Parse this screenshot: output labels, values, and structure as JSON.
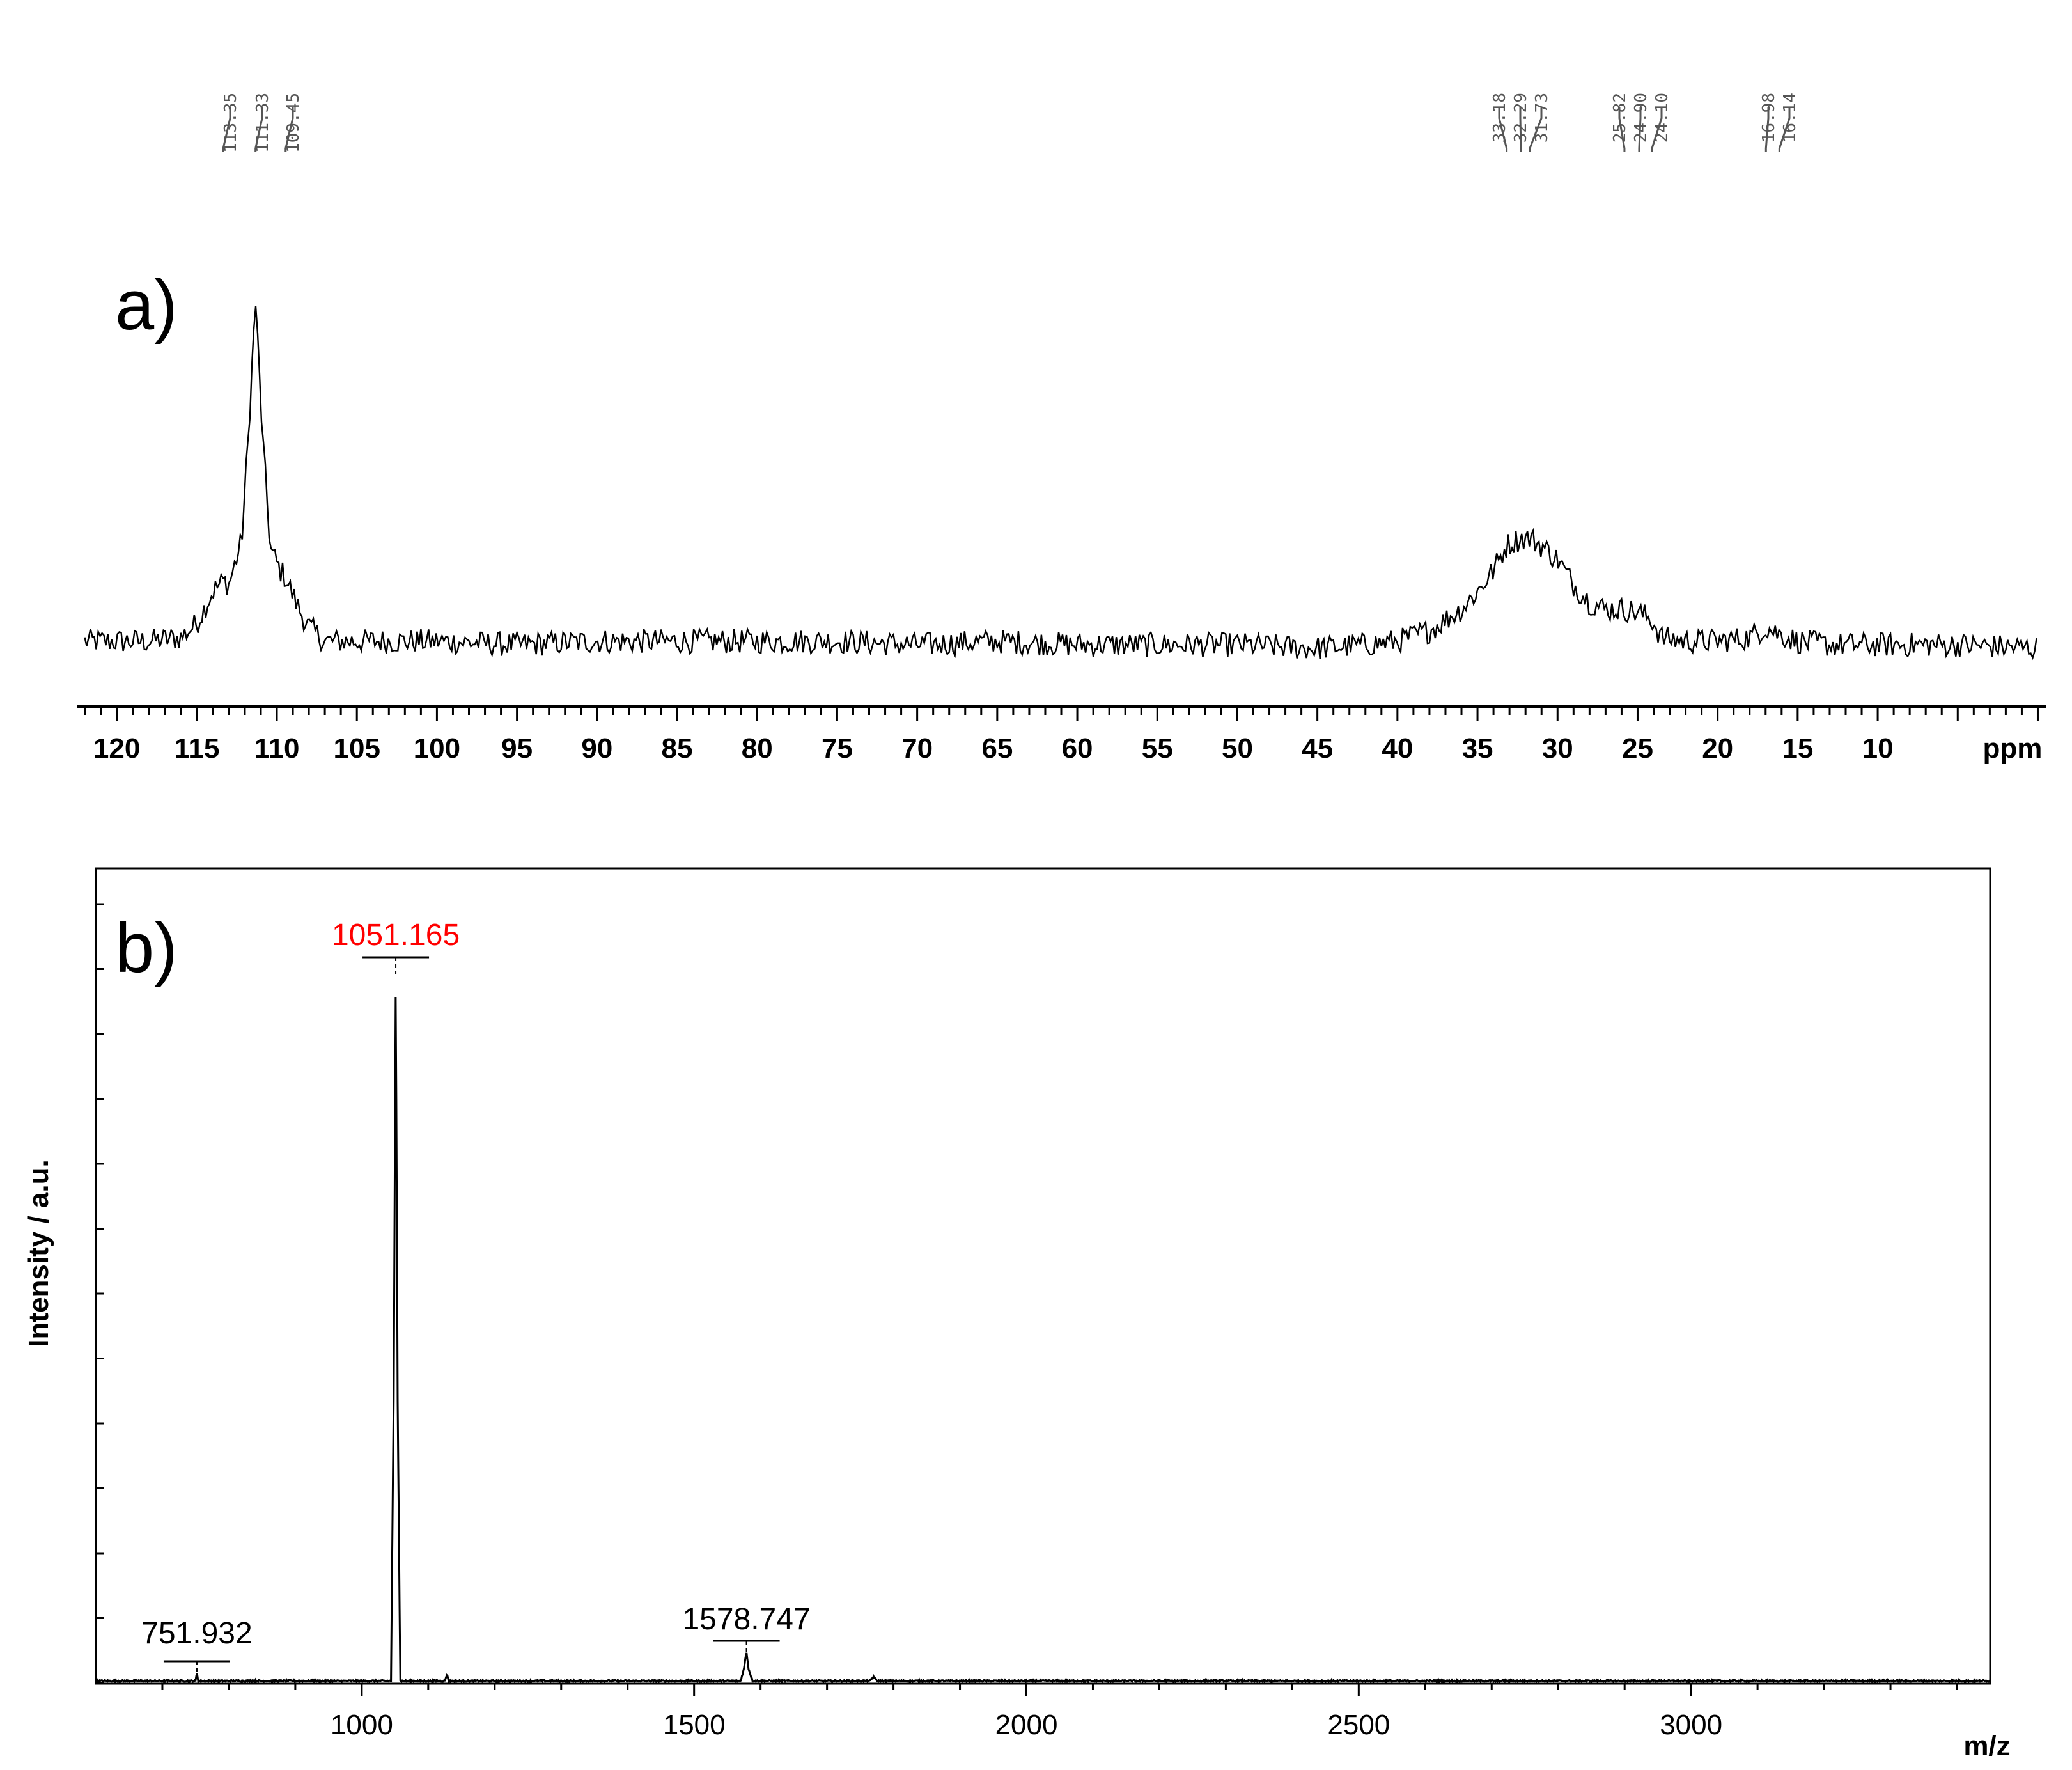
{
  "chart_data": [
    {
      "type": "line",
      "panel_label": "a)",
      "xlabel": "ppm",
      "x_reversed": true,
      "xlim": [
        122.5,
        -0.5
      ],
      "ticks": [
        "120",
        "115",
        "110",
        "105",
        "100",
        "95",
        "90",
        "85",
        "80",
        "75",
        "70",
        "65",
        "60",
        "55",
        "50",
        "45",
        "40",
        "35",
        "30",
        "25",
        "20",
        "15",
        "10"
      ],
      "tick_values": [
        120,
        115,
        110,
        105,
        100,
        95,
        90,
        85,
        80,
        75,
        70,
        65,
        60,
        55,
        50,
        45,
        40,
        35,
        30,
        25,
        20,
        15,
        10
      ],
      "peak_labels": [
        "113.35",
        "111.33",
        "109.45",
        "33.18",
        "32.29",
        "31.73",
        "25.82",
        "24.90",
        "24.10",
        "16.98",
        "16.14"
      ],
      "peak_values": [
        113.35,
        111.33,
        109.45,
        33.18,
        32.29,
        31.73,
        25.82,
        24.9,
        24.1,
        16.98,
        16.14
      ],
      "series": [
        {
          "x": [
            122,
            120,
            118,
            116,
            115,
            114,
            113.35,
            113,
            112.2,
            111.8,
            111.33,
            110.9,
            110.4,
            109.8,
            109.45,
            109,
            108.5,
            108,
            107,
            105,
            100,
            95,
            90,
            85,
            80,
            75,
            70,
            65,
            60,
            55,
            50,
            45,
            42,
            40,
            38,
            36,
            35,
            34,
            33.18,
            32.29,
            31.73,
            31,
            30,
            29,
            28,
            27,
            25.82,
            24.9,
            24.1,
            23.5,
            22,
            20,
            18,
            16.98,
            16.14,
            15,
            13,
            10,
            5,
            0
          ],
          "y": [
            4,
            4,
            4,
            5,
            9,
            18,
            21,
            20,
            32,
            60,
            100,
            62,
            30,
            24,
            22,
            17,
            12,
            8,
            4,
            4,
            4,
            3,
            4,
            4,
            4,
            4,
            3,
            4,
            3,
            3,
            3,
            2,
            3,
            4,
            7,
            13,
            18,
            24,
            31,
            33,
            33,
            31,
            27,
            20,
            15,
            13,
            13,
            12,
            10,
            5,
            4,
            4,
            5,
            8,
            6,
            4,
            3,
            3,
            3,
            2
          ]
        }
      ]
    },
    {
      "type": "line",
      "panel_label": "b)",
      "xlabel": "m/z",
      "ylabel": "Intensity / a.u.",
      "xlim": [
        600,
        3450
      ],
      "ticks": [
        "1000",
        "1500",
        "2000",
        "2500",
        "3000"
      ],
      "tick_values": [
        1000,
        1500,
        2000,
        2500,
        3000
      ],
      "peak_labels": [
        {
          "text": "1051.165",
          "mz": 1051.165,
          "color": "#ff0000"
        },
        {
          "text": "751.932",
          "mz": 751.932,
          "color": "#000000"
        },
        {
          "text": "1578.747",
          "mz": 1578.747,
          "color": "#000000"
        }
      ],
      "series": [
        {
          "x": [
            600,
            750,
            751.932,
            754,
            1000,
            1044,
            1048,
            1051.165,
            1054,
            1058,
            1125,
            1128,
            1131,
            1570,
            1575,
            1578.747,
            1582,
            1588,
            1765,
            1770,
            1775,
            2100,
            2630,
            3450
          ],
          "y": [
            0.3,
            0.3,
            1.5,
            0.3,
            0.3,
            0.3,
            40,
            100,
            40,
            0.3,
            0.3,
            1.2,
            0.3,
            0.3,
            2,
            4.5,
            2,
            0.3,
            0.3,
            0.9,
            0.3,
            0.3,
            0.3,
            0.3
          ]
        }
      ]
    }
  ]
}
